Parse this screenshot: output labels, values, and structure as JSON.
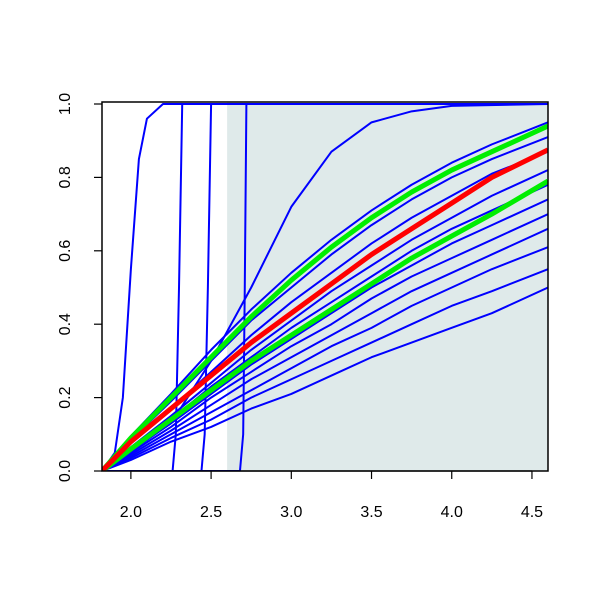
{
  "chart_data": {
    "type": "line",
    "x": [
      1.82,
      2.0,
      2.25,
      2.5,
      2.75,
      3.0,
      3.25,
      3.5,
      3.75,
      4.0,
      4.25,
      4.6
    ],
    "xlim": [
      1.82,
      4.6
    ],
    "ylim": [
      0,
      1
    ],
    "xticks": [
      {
        "value": 2.0,
        "label": "2.0"
      },
      {
        "value": 2.5,
        "label": "2.5"
      },
      {
        "value": 3.0,
        "label": "3.0"
      },
      {
        "value": 3.5,
        "label": "3.5"
      },
      {
        "value": 4.0,
        "label": "4.0"
      },
      {
        "value": 4.5,
        "label": "4.5"
      }
    ],
    "yticks": [
      {
        "value": 0,
        "label": "0.0"
      },
      {
        "value": 0.2,
        "label": "0.2"
      },
      {
        "value": 0.4,
        "label": "0.4"
      },
      {
        "value": 0.6,
        "label": "0.6"
      },
      {
        "value": 0.8,
        "label": "0.8"
      },
      {
        "value": 1,
        "label": "1.0"
      }
    ],
    "shaded_region": {
      "xlim": [
        2.6,
        4.6
      ],
      "color": "#dfeaea"
    },
    "series": [
      {
        "color": "#0000ff",
        "values": [
          0,
          0.03,
          0.08,
          0.12,
          0.17,
          0.21,
          0.26,
          0.31,
          0.35,
          0.39,
          0.43,
          0.5
        ]
      },
      {
        "color": "#0000ff",
        "values": [
          0,
          0.035,
          0.09,
          0.14,
          0.2,
          0.25,
          0.3,
          0.35,
          0.4,
          0.45,
          0.49,
          0.55
        ]
      },
      {
        "color": "#0000ff",
        "values": [
          0,
          0.04,
          0.1,
          0.16,
          0.22,
          0.28,
          0.34,
          0.39,
          0.45,
          0.5,
          0.55,
          0.61
        ]
      },
      {
        "color": "#0000ff",
        "values": [
          0,
          0.045,
          0.11,
          0.18,
          0.25,
          0.31,
          0.37,
          0.43,
          0.49,
          0.54,
          0.59,
          0.66
        ]
      },
      {
        "color": "#0000ff",
        "values": [
          0,
          0.05,
          0.12,
          0.2,
          0.27,
          0.34,
          0.4,
          0.47,
          0.53,
          0.58,
          0.63,
          0.7
        ]
      },
      {
        "color": "#0000ff",
        "values": [
          0,
          0.055,
          0.13,
          0.21,
          0.29,
          0.36,
          0.43,
          0.5,
          0.56,
          0.62,
          0.67,
          0.74
        ]
      },
      {
        "color": "#0000ff",
        "values": [
          0,
          0.06,
          0.14,
          0.23,
          0.31,
          0.39,
          0.46,
          0.53,
          0.6,
          0.66,
          0.71,
          0.78
        ]
      },
      {
        "color": "#0000ff",
        "values": [
          0,
          0.065,
          0.15,
          0.24,
          0.33,
          0.41,
          0.49,
          0.56,
          0.63,
          0.69,
          0.75,
          0.82
        ]
      },
      {
        "color": "#0000ff",
        "values": [
          0,
          0.075,
          0.17,
          0.27,
          0.37,
          0.46,
          0.54,
          0.62,
          0.69,
          0.75,
          0.81,
          0.87
        ]
      },
      {
        "color": "#0000ff",
        "values": [
          0,
          0.085,
          0.19,
          0.3,
          0.41,
          0.5,
          0.59,
          0.67,
          0.74,
          0.8,
          0.85,
          0.91
        ]
      },
      {
        "color": "#0000ff",
        "values": [
          0,
          0.095,
          0.21,
          0.33,
          0.44,
          0.54,
          0.63,
          0.71,
          0.78,
          0.84,
          0.89,
          0.95
        ]
      },
      {
        "color": "#0000ff",
        "x": [
          1.82,
          2.25,
          2.5,
          2.75,
          3.0,
          3.25,
          3.5,
          3.75,
          4.0,
          4.6
        ],
        "values": [
          0,
          0.13,
          0.3,
          0.5,
          0.72,
          0.87,
          0.95,
          0.98,
          0.995,
          1
        ]
      },
      {
        "color": "#0000ff",
        "x": [
          1.82,
          1.9,
          1.95,
          2.0,
          2.05,
          2.1,
          2.2,
          4.6
        ],
        "values": [
          0,
          0.05,
          0.2,
          0.55,
          0.85,
          0.96,
          1,
          1
        ]
      },
      {
        "color": "#0000ff",
        "x": [
          1.82,
          2.26,
          2.28,
          2.3,
          2.32,
          4.6
        ],
        "values": [
          0,
          0,
          0.1,
          0.5,
          1,
          1
        ]
      },
      {
        "color": "#0000ff",
        "x": [
          1.82,
          2.44,
          2.46,
          2.48,
          2.5,
          4.6
        ],
        "values": [
          0,
          0,
          0.1,
          0.5,
          1,
          1
        ]
      },
      {
        "color": "#0000ff",
        "x": [
          1.82,
          2.68,
          2.7,
          2.71,
          2.72,
          4.6
        ],
        "values": [
          0,
          0,
          0.1,
          0.5,
          1,
          1
        ]
      },
      {
        "color": "#00ee00",
        "bold": true,
        "values": [
          0,
          0.09,
          0.2,
          0.31,
          0.42,
          0.52,
          0.61,
          0.69,
          0.76,
          0.82,
          0.87,
          0.94
        ]
      },
      {
        "color": "#00ee00",
        "bold": true,
        "values": [
          0,
          0.06,
          0.14,
          0.22,
          0.3,
          0.37,
          0.44,
          0.51,
          0.58,
          0.64,
          0.7,
          0.79
        ]
      },
      {
        "color": "#ff0000",
        "bold": true,
        "values": [
          0,
          0.08,
          0.17,
          0.26,
          0.35,
          0.43,
          0.51,
          0.59,
          0.66,
          0.73,
          0.8,
          0.875
        ]
      }
    ]
  }
}
